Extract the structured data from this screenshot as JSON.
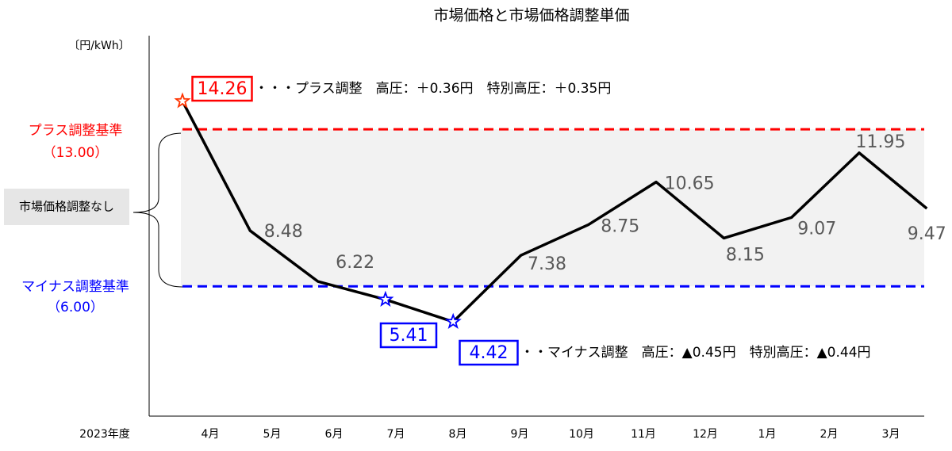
{
  "chart_data": {
    "type": "line",
    "title": "市場価格と市場価格調整単価",
    "y_unit": "〔円/kWh〕",
    "x_prefix": "2023年度",
    "categories": [
      "4月",
      "5月",
      "6月",
      "7月",
      "8月",
      "9月",
      "10月",
      "11月",
      "12月",
      "1月",
      "2月",
      "3月"
    ],
    "series": [
      {
        "name": "市場価格",
        "color": "#000000",
        "values": [
          14.26,
          8.48,
          6.22,
          5.41,
          4.42,
          7.38,
          8.75,
          10.65,
          8.15,
          9.07,
          11.95,
          9.47
        ]
      }
    ],
    "ylim": [
      0,
      17
    ],
    "reference_lines": [
      {
        "name": "プラス調整基準",
        "value": 13,
        "label": "（13.00）",
        "color": "#ff0000"
      },
      {
        "name": "マイナス調整基準",
        "value": 6,
        "label": "（6.00）",
        "color": "#0000ff"
      }
    ],
    "band_label": "市場価格調整なし",
    "plus_note": "・・・プラス調整　高圧：＋0.36円　特別高圧：＋0.35円",
    "minus_note": "・・マイナス調整　高圧：▲0.45円　特別高圧：▲0.44円"
  }
}
